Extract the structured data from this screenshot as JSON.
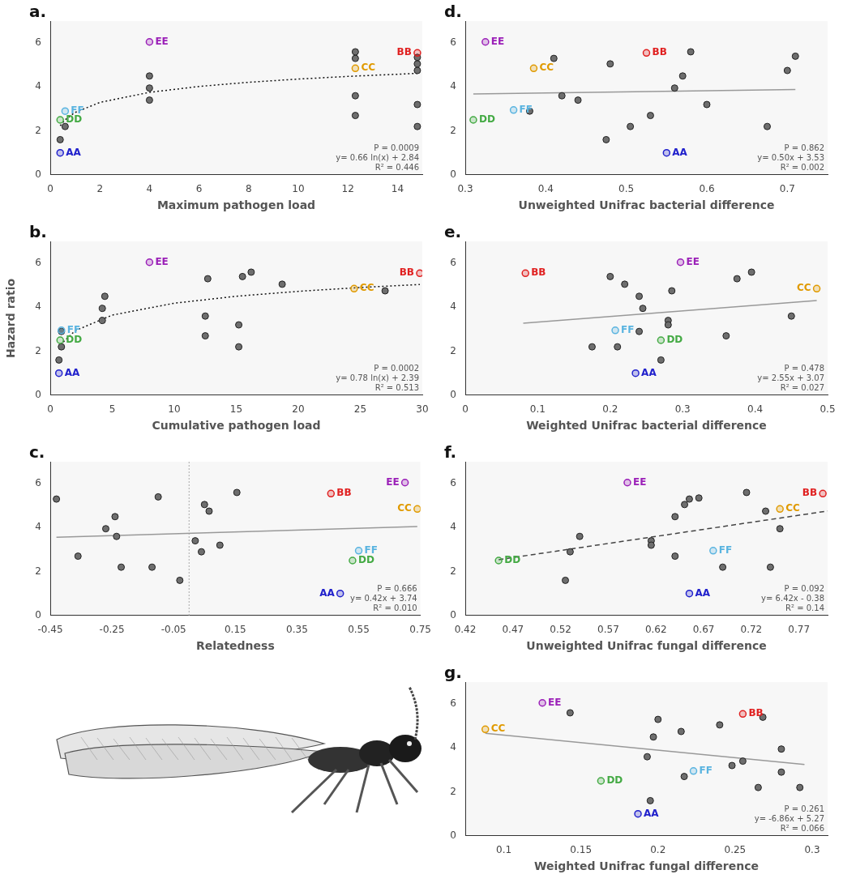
{
  "chart_data": [
    {
      "type": "scatter",
      "panel": "a.",
      "xlabel": "Maximum pathogen load",
      "xlim": [
        0,
        15
      ],
      "xticks": [
        0,
        2,
        4,
        6,
        8,
        10,
        12,
        14
      ],
      "ylim": [
        0,
        7
      ],
      "yticks": [
        0,
        2,
        4,
        6
      ],
      "grid": false,
      "color": "#6e6e6e",
      "x": [
        0.4,
        0.6,
        4,
        4,
        4,
        12.3,
        12.3,
        12.3,
        12.3,
        14.8,
        14.8,
        14.8,
        14.8,
        14.8
      ],
      "y": [
        1.6,
        2.2,
        3.4,
        3.95,
        4.5,
        2.7,
        3.6,
        5.3,
        5.6,
        2.2,
        3.2,
        4.75,
        5.05,
        5.35
      ],
      "labeled_points": [
        {
          "label": "AA",
          "x": 0.4,
          "y": 1.0,
          "color": "#2222cc"
        },
        {
          "label": "BB",
          "x": 14.8,
          "y": 5.55,
          "color": "#e02020"
        },
        {
          "label": "CC",
          "x": 12.3,
          "y": 4.85,
          "color": "#e09a00"
        },
        {
          "label": "DD",
          "x": 0.4,
          "y": 2.5,
          "color": "#44aa44"
        },
        {
          "label": "EE",
          "x": 4,
          "y": 6.05,
          "color": "#9b20b8"
        },
        {
          "label": "FF",
          "x": 0.6,
          "y": 2.9,
          "color": "#5ab4e0"
        }
      ],
      "fit": {
        "x": [
          0.4,
          0.6,
          1,
          2,
          4,
          6,
          8,
          10,
          12,
          14.8
        ],
        "y": [
          2.235,
          2.503,
          2.84,
          3.297,
          3.755,
          4.023,
          4.212,
          4.36,
          4.48,
          4.619
        ],
        "color": "#111111",
        "line_style": "dotted"
      },
      "annotations": [
        "P = 0.0009",
        "y= 0.66 ln(x) + 2.84",
        "R² = 0.446"
      ]
    },
    {
      "type": "scatter",
      "panel": "b.",
      "xlabel": "Cumulative pathogen load",
      "ylabel": "Hazard ratio",
      "xlim": [
        0,
        30
      ],
      "xticks": [
        0,
        5,
        10,
        15,
        20,
        25,
        30
      ],
      "ylim": [
        0,
        7
      ],
      "yticks": [
        0,
        2,
        4,
        6
      ],
      "grid": false,
      "color": "#6e6e6e",
      "x": [
        0.7,
        0.9,
        0.9,
        4.2,
        4.2,
        4.4,
        12.5,
        12.5,
        12.7,
        15.2,
        15.2,
        15.5,
        16.2,
        18.7,
        27
      ],
      "y": [
        1.6,
        2.2,
        2.9,
        3.4,
        3.95,
        4.5,
        2.7,
        3.6,
        5.3,
        2.2,
        3.2,
        5.4,
        5.6,
        5.05,
        4.75
      ],
      "labeled_points": [
        {
          "label": "AA",
          "x": 0.7,
          "y": 1.0,
          "color": "#2222cc"
        },
        {
          "label": "BB",
          "x": 29.8,
          "y": 5.55,
          "color": "#e02020"
        },
        {
          "label": "CC",
          "x": 24.5,
          "y": 4.85,
          "color": "#e09a00"
        },
        {
          "label": "DD",
          "x": 0.8,
          "y": 2.5,
          "color": "#44aa44"
        },
        {
          "label": "EE",
          "x": 8,
          "y": 6.05,
          "color": "#9b20b8"
        },
        {
          "label": "FF",
          "x": 0.9,
          "y": 2.95,
          "color": "#5ab4e0"
        }
      ],
      "fit": {
        "x": [
          0.7,
          1,
          2,
          5,
          10,
          15,
          20,
          25,
          29.8
        ],
        "y": [
          2.112,
          2.39,
          2.931,
          3.645,
          4.186,
          4.502,
          4.727,
          4.901,
          5.038
        ],
        "color": "#111111",
        "line_style": "dotted"
      },
      "annotations": [
        "P = 0.0002",
        "y= 0.78 ln(x) + 2.39",
        "R² = 0.513"
      ]
    },
    {
      "type": "scatter",
      "panel": "c.",
      "xlabel": "Relatedness",
      "xlim": [
        -0.45,
        0.75
      ],
      "xticks": [
        -0.45,
        -0.25,
        -0.05,
        0.15,
        0.35,
        0.55,
        0.75
      ],
      "ylim": [
        0,
        7
      ],
      "yticks": [
        0,
        2,
        4,
        6
      ],
      "grid": false,
      "vline": 0,
      "color": "#6e6e6e",
      "x": [
        -0.43,
        -0.36,
        -0.27,
        -0.24,
        -0.235,
        -0.22,
        -0.1,
        -0.12,
        -0.03,
        0.02,
        0.04,
        0.05,
        0.065,
        0.1,
        0.155
      ],
      "y": [
        5.3,
        2.7,
        3.95,
        4.5,
        3.6,
        2.2,
        5.4,
        2.2,
        1.6,
        3.4,
        2.9,
        5.05,
        4.75,
        3.2,
        5.6
      ],
      "labeled_points": [
        {
          "label": "AA",
          "x": 0.49,
          "y": 1.0,
          "color": "#2222cc"
        },
        {
          "label": "BB",
          "x": 0.46,
          "y": 5.55,
          "color": "#e02020"
        },
        {
          "label": "CC",
          "x": 0.74,
          "y": 4.85,
          "color": "#e09a00"
        },
        {
          "label": "DD",
          "x": 0.53,
          "y": 2.5,
          "color": "#44aa44"
        },
        {
          "label": "EE",
          "x": 0.7,
          "y": 6.05,
          "color": "#9b20b8"
        },
        {
          "label": "FF",
          "x": 0.55,
          "y": 2.95,
          "color": "#5ab4e0"
        }
      ],
      "fit": {
        "x": [
          -0.43,
          0.74
        ],
        "y": [
          3.559,
          4.051
        ],
        "color": "#999999",
        "line_style": "solid"
      },
      "annotations": [
        "P = 0.666",
        "y= 0.42x + 3.74",
        "R² = 0.010"
      ]
    },
    {
      "type": "scatter",
      "panel": "d.",
      "xlabel": "Unweighted Unifrac bacterial difference",
      "xlim": [
        0.3,
        0.75
      ],
      "xticks": [
        0.3,
        0.4,
        0.5,
        0.6,
        0.7
      ],
      "ylim": [
        0,
        7
      ],
      "yticks": [
        0,
        2,
        4,
        6
      ],
      "grid": false,
      "color": "#6e6e6e",
      "x": [
        0.41,
        0.48,
        0.42,
        0.44,
        0.38,
        0.57,
        0.56,
        0.58,
        0.6,
        0.53,
        0.505,
        0.475,
        0.7,
        0.71,
        0.675
      ],
      "y": [
        5.3,
        5.05,
        3.6,
        3.4,
        2.9,
        4.5,
        3.95,
        5.6,
        3.2,
        2.7,
        2.2,
        1.6,
        4.75,
        5.4,
        2.2
      ],
      "labeled_points": [
        {
          "label": "AA",
          "x": 0.55,
          "y": 1.0,
          "color": "#2222cc"
        },
        {
          "label": "BB",
          "x": 0.525,
          "y": 5.55,
          "color": "#e02020"
        },
        {
          "label": "CC",
          "x": 0.385,
          "y": 4.85,
          "color": "#e09a00"
        },
        {
          "label": "DD",
          "x": 0.31,
          "y": 2.5,
          "color": "#44aa44"
        },
        {
          "label": "EE",
          "x": 0.325,
          "y": 6.05,
          "color": "#9b20b8"
        },
        {
          "label": "FF",
          "x": 0.36,
          "y": 2.95,
          "color": "#5ab4e0"
        }
      ],
      "fit": {
        "x": [
          0.31,
          0.71
        ],
        "y": [
          3.685,
          3.885
        ],
        "color": "#999999",
        "line_style": "solid"
      },
      "annotations": [
        "P = 0.862",
        "y= 0.50x + 3.53",
        "R² = 0.002"
      ]
    },
    {
      "type": "scatter",
      "panel": "e.",
      "xlabel": "Weighted Unifrac bacterial difference",
      "xlim": [
        0,
        0.5
      ],
      "xticks": [
        0,
        0.1,
        0.2,
        0.3,
        0.4,
        0.5
      ],
      "ylim": [
        0,
        7
      ],
      "yticks": [
        0,
        2,
        4,
        6
      ],
      "grid": false,
      "color": "#6e6e6e",
      "x": [
        0.2,
        0.22,
        0.24,
        0.245,
        0.285,
        0.28,
        0.28,
        0.24,
        0.175,
        0.21,
        0.27,
        0.36,
        0.375,
        0.395,
        0.45
      ],
      "y": [
        5.4,
        5.05,
        4.5,
        3.95,
        4.75,
        3.4,
        3.2,
        2.9,
        2.2,
        2.2,
        1.6,
        2.7,
        5.3,
        5.6,
        3.6
      ],
      "labeled_points": [
        {
          "label": "AA",
          "x": 0.235,
          "y": 1.0,
          "color": "#2222cc"
        },
        {
          "label": "BB",
          "x": 0.083,
          "y": 5.55,
          "color": "#e02020"
        },
        {
          "label": "CC",
          "x": 0.485,
          "y": 4.85,
          "color": "#e09a00"
        },
        {
          "label": "DD",
          "x": 0.27,
          "y": 2.5,
          "color": "#44aa44"
        },
        {
          "label": "EE",
          "x": 0.297,
          "y": 6.05,
          "color": "#9b20b8"
        },
        {
          "label": "FF",
          "x": 0.207,
          "y": 2.95,
          "color": "#5ab4e0"
        }
      ],
      "fit": {
        "x": [
          0.08,
          0.485
        ],
        "y": [
          3.274,
          4.307
        ],
        "color": "#999999",
        "line_style": "solid"
      },
      "annotations": [
        "P = 0.478",
        "y= 2.55x + 3.07",
        "R² = 0.027"
      ]
    },
    {
      "type": "scatter",
      "panel": "f.",
      "xlabel": "Unweighted Unifrac fungal difference",
      "xlim": [
        0.42,
        0.8
      ],
      "xticks": [
        0.42,
        0.47,
        0.52,
        0.57,
        0.62,
        0.67,
        0.72,
        0.77
      ],
      "ylim": [
        0,
        7
      ],
      "yticks": [
        0,
        2,
        4,
        6
      ],
      "grid": false,
      "color": "#6e6e6e",
      "x": [
        0.525,
        0.53,
        0.54,
        0.615,
        0.615,
        0.64,
        0.64,
        0.65,
        0.655,
        0.665,
        0.69,
        0.715,
        0.735,
        0.74,
        0.75
      ],
      "y": [
        1.6,
        2.9,
        3.6,
        3.4,
        3.2,
        2.7,
        4.5,
        5.05,
        5.3,
        5.35,
        2.2,
        5.6,
        4.75,
        2.2,
        3.95
      ],
      "labeled_points": [
        {
          "label": "AA",
          "x": 0.655,
          "y": 1.0,
          "color": "#2222cc"
        },
        {
          "label": "BB",
          "x": 0.795,
          "y": 5.55,
          "color": "#e02020"
        },
        {
          "label": "CC",
          "x": 0.75,
          "y": 4.85,
          "color": "#e09a00"
        },
        {
          "label": "DD",
          "x": 0.455,
          "y": 2.5,
          "color": "#44aa44"
        },
        {
          "label": "EE",
          "x": 0.59,
          "y": 6.05,
          "color": "#9b20b8"
        },
        {
          "label": "FF",
          "x": 0.68,
          "y": 2.95,
          "color": "#5ab4e0"
        }
      ],
      "fit": {
        "x": [
          0.455,
          0.8
        ],
        "y": [
          2.541,
          4.756
        ],
        "color": "#444444",
        "line_style": "dashed"
      },
      "annotations": [
        "P = 0.092",
        "y= 6.42x - 0.38",
        "R² = 0.14"
      ]
    },
    {
      "type": "scatter",
      "panel": "g.",
      "xlabel": "Weighted Unifrac fungal difference",
      "xlim": [
        0.075,
        0.31
      ],
      "xticks": [
        0.1,
        0.15,
        0.2,
        0.25,
        0.3
      ],
      "ylim": [
        0,
        7
      ],
      "yticks": [
        0,
        2,
        4,
        6
      ],
      "grid": false,
      "color": "#6e6e6e",
      "x": [
        0.143,
        0.2,
        0.197,
        0.193,
        0.215,
        0.24,
        0.268,
        0.28,
        0.255,
        0.248,
        0.28,
        0.217,
        0.265,
        0.292,
        0.195
      ],
      "y": [
        5.6,
        5.3,
        4.5,
        3.6,
        4.75,
        5.05,
        5.4,
        3.95,
        3.4,
        3.2,
        2.9,
        2.7,
        2.2,
        2.2,
        1.6
      ],
      "labeled_points": [
        {
          "label": "AA",
          "x": 0.187,
          "y": 1.0,
          "color": "#2222cc"
        },
        {
          "label": "BB",
          "x": 0.255,
          "y": 5.55,
          "color": "#e02020"
        },
        {
          "label": "CC",
          "x": 0.088,
          "y": 4.85,
          "color": "#e09a00"
        },
        {
          "label": "DD",
          "x": 0.163,
          "y": 2.5,
          "color": "#44aa44"
        },
        {
          "label": "EE",
          "x": 0.125,
          "y": 6.05,
          "color": "#9b20b8"
        },
        {
          "label": "FF",
          "x": 0.223,
          "y": 2.95,
          "color": "#5ab4e0"
        }
      ],
      "fit": {
        "x": [
          0.088,
          0.295
        ],
        "y": [
          4.666,
          3.246
        ],
        "color": "#999999",
        "line_style": "solid"
      },
      "annotations": [
        "P = 0.261",
        "y= -6.86x + 5.27",
        "R² = 0.066"
      ]
    }
  ]
}
